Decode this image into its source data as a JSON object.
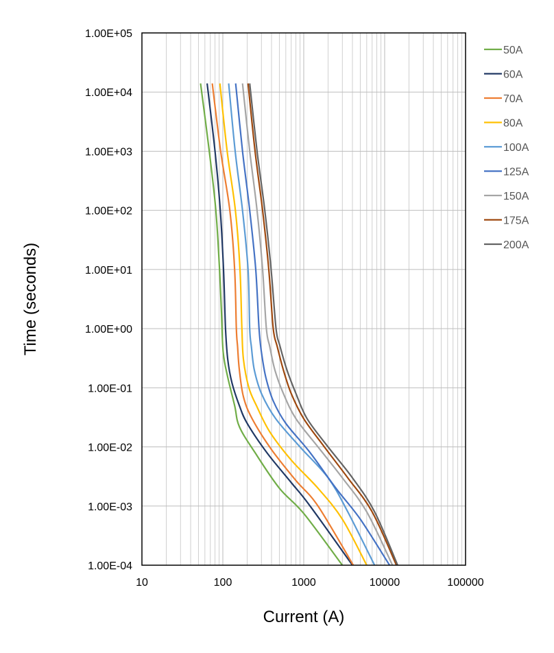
{
  "chart_data": {
    "type": "line",
    "title": "",
    "xlabel": "Current (A)",
    "ylabel": "Time (seconds)",
    "x_scale": "log",
    "y_scale": "log",
    "xlim": [
      10,
      100000
    ],
    "ylim": [
      0.0001,
      100000
    ],
    "grid": true,
    "legend_position": "right",
    "x_ticks": [
      {
        "value": 10,
        "label": "10"
      },
      {
        "value": 100,
        "label": "100"
      },
      {
        "value": 1000,
        "label": "1000"
      },
      {
        "value": 10000,
        "label": "10000"
      },
      {
        "value": 100000,
        "label": "100000"
      }
    ],
    "y_ticks": [
      {
        "value": 100000,
        "label": "1.00E+05"
      },
      {
        "value": 10000,
        "label": "1.00E+04"
      },
      {
        "value": 1000,
        "label": "1.00E+03"
      },
      {
        "value": 100,
        "label": "1.00E+02"
      },
      {
        "value": 10,
        "label": "1.00E+01"
      },
      {
        "value": 1,
        "label": "1.00E+00"
      },
      {
        "value": 0.1,
        "label": "1.00E-01"
      },
      {
        "value": 0.01,
        "label": "1.00E-02"
      },
      {
        "value": 0.001,
        "label": "1.00E-03"
      },
      {
        "value": 0.0001,
        "label": "1.00E-04"
      }
    ],
    "series": [
      {
        "name": "50A",
        "color": "#70ad47",
        "points": [
          [
            53,
            14000
          ],
          [
            68,
            1000
          ],
          [
            82,
            100
          ],
          [
            91,
            10
          ],
          [
            96,
            2
          ],
          [
            101,
            0.4
          ],
          [
            115,
            0.15
          ],
          [
            140,
            0.05
          ],
          [
            160,
            0.022
          ],
          [
            250,
            0.008
          ],
          [
            500,
            0.002
          ],
          [
            1000,
            0.00075
          ],
          [
            3000,
            0.0001
          ]
        ]
      },
      {
        "name": "60A",
        "color": "#203864",
        "points": [
          [
            64,
            14000
          ],
          [
            80,
            1000
          ],
          [
            93,
            100
          ],
          [
            102,
            10
          ],
          [
            108,
            1
          ],
          [
            115,
            0.3
          ],
          [
            130,
            0.12
          ],
          [
            160,
            0.05
          ],
          [
            200,
            0.025
          ],
          [
            350,
            0.008
          ],
          [
            700,
            0.0025
          ],
          [
            1200,
            0.001
          ],
          [
            4000,
            0.0001
          ]
        ]
      },
      {
        "name": "70A",
        "color": "#ed7d31",
        "points": [
          [
            74,
            14000
          ],
          [
            94,
            1000
          ],
          [
            122,
            100
          ],
          [
            140,
            10
          ],
          [
            147,
            1
          ],
          [
            152,
            0.5
          ],
          [
            160,
            0.2
          ],
          [
            180,
            0.07
          ],
          [
            230,
            0.03
          ],
          [
            400,
            0.009
          ],
          [
            800,
            0.0027
          ],
          [
            1500,
            0.001
          ],
          [
            4100,
            0.0001
          ]
        ]
      },
      {
        "name": "80A",
        "color": "#ffc000",
        "points": [
          [
            92,
            14000
          ],
          [
            113,
            1000
          ],
          [
            143,
            100
          ],
          [
            163,
            10
          ],
          [
            172,
            1
          ],
          [
            180,
            0.3
          ],
          [
            210,
            0.1
          ],
          [
            260,
            0.05
          ],
          [
            380,
            0.018
          ],
          [
            700,
            0.006
          ],
          [
            1500,
            0.002
          ],
          [
            3000,
            0.0006
          ],
          [
            6000,
            0.0001
          ]
        ]
      },
      {
        "name": "100A",
        "color": "#5b9bd5",
        "points": [
          [
            118,
            14000
          ],
          [
            142,
            1000
          ],
          [
            175,
            100
          ],
          [
            205,
            10
          ],
          [
            215,
            1
          ],
          [
            225,
            0.5
          ],
          [
            245,
            0.2
          ],
          [
            300,
            0.08
          ],
          [
            450,
            0.03
          ],
          [
            900,
            0.01
          ],
          [
            2000,
            0.003
          ],
          [
            3500,
            0.0008
          ],
          [
            7500,
            0.0001
          ]
        ]
      },
      {
        "name": "125A",
        "color": "#4472c4",
        "points": [
          [
            144,
            14000
          ],
          [
            175,
            1000
          ],
          [
            215,
            100
          ],
          [
            255,
            10
          ],
          [
            280,
            1
          ],
          [
            300,
            0.4
          ],
          [
            340,
            0.15
          ],
          [
            420,
            0.06
          ],
          [
            600,
            0.025
          ],
          [
            1200,
            0.008
          ],
          [
            2500,
            0.002
          ],
          [
            5000,
            0.0006
          ],
          [
            11500,
            0.0001
          ]
        ]
      },
      {
        "name": "150A",
        "color": "#a5a5a5",
        "points": [
          [
            175,
            14000
          ],
          [
            215,
            1000
          ],
          [
            265,
            100
          ],
          [
            310,
            10
          ],
          [
            345,
            1
          ],
          [
            380,
            0.5
          ],
          [
            440,
            0.2
          ],
          [
            560,
            0.08
          ],
          [
            800,
            0.03
          ],
          [
            1500,
            0.01
          ],
          [
            3000,
            0.003
          ],
          [
            6000,
            0.0008
          ],
          [
            12500,
            0.0001
          ]
        ]
      },
      {
        "name": "175A",
        "color": "#9e480e",
        "points": [
          [
            205,
            14000
          ],
          [
            250,
            1000
          ],
          [
            310,
            100
          ],
          [
            370,
            10
          ],
          [
            420,
            1
          ],
          [
            470,
            0.5
          ],
          [
            560,
            0.2
          ],
          [
            700,
            0.08
          ],
          [
            1000,
            0.03
          ],
          [
            1800,
            0.01
          ],
          [
            3500,
            0.003
          ],
          [
            7000,
            0.0008
          ],
          [
            14000,
            0.0001
          ]
        ]
      },
      {
        "name": "200A",
        "color": "#636363",
        "points": [
          [
            215,
            14000
          ],
          [
            265,
            1000
          ],
          [
            330,
            100
          ],
          [
            395,
            10
          ],
          [
            455,
            1
          ],
          [
            510,
            0.5
          ],
          [
            620,
            0.2
          ],
          [
            800,
            0.08
          ],
          [
            1100,
            0.03
          ],
          [
            2000,
            0.01
          ],
          [
            4000,
            0.003
          ],
          [
            7500,
            0.0008
          ],
          [
            14500,
            0.0001
          ]
        ]
      }
    ]
  }
}
